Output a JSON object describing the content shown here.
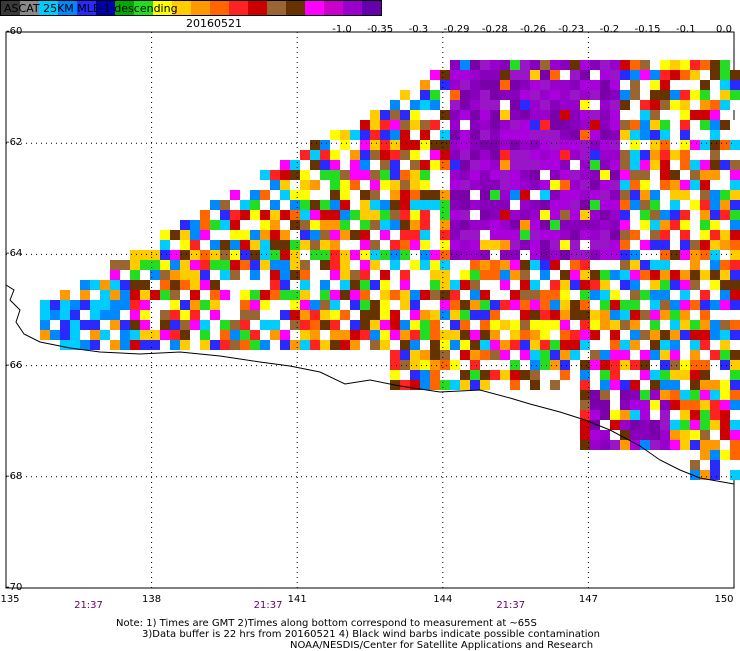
{
  "header": {
    "title": "ASCAT 25KM MLE-1 descending",
    "date": "20160521"
  },
  "colorbar": {
    "colors": [
      "#3a3a3a",
      "#8a8a8a",
      "#00ccff",
      "#0088ff",
      "#2a2aff",
      "#0000aa",
      "#00aa00",
      "#22dd22",
      "#ffff00",
      "#ffcc00",
      "#ff9900",
      "#ff6600",
      "#ff2222",
      "#cc0000",
      "#996633",
      "#663300",
      "#ff00ff",
      "#cc00cc",
      "#9900cc",
      "#6600aa"
    ],
    "labels": [
      {
        "text": "-1.0",
        "value": -1.0
      },
      {
        "text": "-0.35",
        "value": -0.35
      },
      {
        "text": "-0.3",
        "value": -0.3
      },
      {
        "text": "-0.29",
        "value": -0.29
      },
      {
        "text": "-0.28",
        "value": -0.28
      },
      {
        "text": "-0.26",
        "value": -0.26
      },
      {
        "text": "-0.23",
        "value": -0.23
      },
      {
        "text": "-0.2",
        "value": -0.2
      },
      {
        "text": "-0.15",
        "value": -0.15
      },
      {
        "text": "-0.1",
        "value": -0.1
      },
      {
        "text": "0.0",
        "value": 0.0
      }
    ]
  },
  "map": {
    "lon_range": [
      135,
      150
    ],
    "lat_range": [
      -70,
      -60
    ],
    "lon_ticks": [
      {
        "text": "135",
        "value": 135
      },
      {
        "text": "138",
        "value": 138
      },
      {
        "text": "141",
        "value": 141
      },
      {
        "text": "144",
        "value": 144
      },
      {
        "text": "147",
        "value": 147
      },
      {
        "text": "150",
        "value": 150
      }
    ],
    "lat_ticks": [
      {
        "text": "-60",
        "value": -60
      },
      {
        "text": "-62",
        "value": -62
      },
      {
        "text": "-64",
        "value": -64
      },
      {
        "text": "-66",
        "value": -66
      },
      {
        "text": "-68",
        "value": -68
      },
      {
        "text": "-70",
        "value": -70
      }
    ],
    "time_labels": [
      {
        "text": "21:37",
        "lon": 136.7
      },
      {
        "text": "21:37",
        "lon": 140.4
      },
      {
        "text": "21:37",
        "lon": 145.4
      }
    ],
    "gridlines": true
  },
  "notes": {
    "line1": "Note: 1) Times are GMT 2)Times along bottom correspond to measurement at ~65S",
    "line2": "3)Data buffer is 22 hrs from 20160521 4) Black wind barbs indicate possible contamination",
    "line3": "NOAA/NESDIS/Center for Satellite Applications and Research"
  }
}
